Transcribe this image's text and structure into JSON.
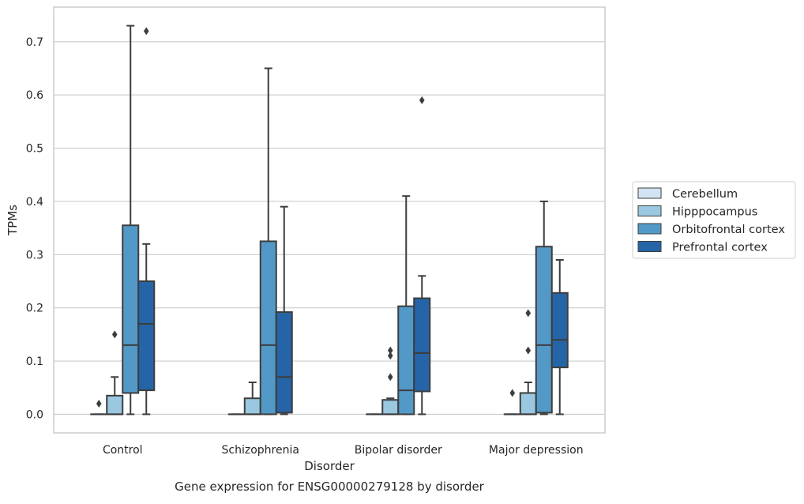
{
  "chart_data": {
    "type": "box",
    "xlabel": "Disorder",
    "ylabel": "TPMs",
    "caption": "Gene expression for ENSG00000279128 by disorder",
    "categories": [
      "Control",
      "Schizophrenia",
      "Bipolar disorder",
      "Major depression"
    ],
    "ylim": [
      -0.035,
      0.765
    ],
    "yticks": [
      "0.0",
      "0.1",
      "0.2",
      "0.3",
      "0.4",
      "0.5",
      "0.6",
      "0.7"
    ],
    "grid": "horizontal",
    "legend_position": "right",
    "series": [
      {
        "name": "Cerebellum",
        "color": "#d2e3f3",
        "boxes": [
          {
            "q1": 0,
            "median": 0,
            "q3": 0,
            "whisker_low": 0,
            "whisker_high": 0,
            "outliers": [
              0.02
            ]
          },
          {
            "q1": 0,
            "median": 0,
            "q3": 0,
            "whisker_low": 0,
            "whisker_high": 0,
            "outliers": []
          },
          {
            "q1": 0,
            "median": 0,
            "q3": 0,
            "whisker_low": 0,
            "whisker_high": 0,
            "outliers": []
          },
          {
            "q1": 0,
            "median": 0,
            "q3": 0,
            "whisker_low": 0,
            "whisker_high": 0,
            "outliers": [
              0.04
            ]
          }
        ]
      },
      {
        "name": "Hipppocampus",
        "color": "#9ac8e0",
        "boxes": [
          {
            "q1": 0,
            "median": 0,
            "q3": 0.035,
            "whisker_low": 0,
            "whisker_high": 0.07,
            "outliers": [
              0.15
            ]
          },
          {
            "q1": 0,
            "median": 0,
            "q3": 0.03,
            "whisker_low": 0,
            "whisker_high": 0.06,
            "outliers": []
          },
          {
            "q1": 0,
            "median": 0,
            "q3": 0.027,
            "whisker_low": 0,
            "whisker_high": 0.03,
            "outliers": [
              0.07,
              0.11,
              0.12
            ]
          },
          {
            "q1": 0,
            "median": 0,
            "q3": 0.04,
            "whisker_low": 0,
            "whisker_high": 0.06,
            "outliers": [
              0.12,
              0.19
            ]
          }
        ]
      },
      {
        "name": "Orbitofrontal cortex",
        "color": "#5399c7",
        "boxes": [
          {
            "q1": 0.04,
            "median": 0.13,
            "q3": 0.355,
            "whisker_low": 0,
            "whisker_high": 0.73,
            "outliers": []
          },
          {
            "q1": 0,
            "median": 0.13,
            "q3": 0.325,
            "whisker_low": 0,
            "whisker_high": 0.65,
            "outliers": []
          },
          {
            "q1": 0,
            "median": 0.045,
            "q3": 0.203,
            "whisker_low": 0,
            "whisker_high": 0.41,
            "outliers": []
          },
          {
            "q1": 0.003,
            "median": 0.13,
            "q3": 0.315,
            "whisker_low": 0,
            "whisker_high": 0.4,
            "outliers": []
          }
        ]
      },
      {
        "name": "Prefrontal cortex",
        "color": "#2565a7",
        "boxes": [
          {
            "q1": 0.045,
            "median": 0.17,
            "q3": 0.25,
            "whisker_low": 0,
            "whisker_high": 0.32,
            "outliers": [
              0.72
            ]
          },
          {
            "q1": 0.003,
            "median": 0.07,
            "q3": 0.192,
            "whisker_low": 0,
            "whisker_high": 0.39,
            "outliers": []
          },
          {
            "q1": 0.043,
            "median": 0.115,
            "q3": 0.218,
            "whisker_low": 0,
            "whisker_high": 0.26,
            "outliers": [
              0.59
            ]
          },
          {
            "q1": 0.088,
            "median": 0.14,
            "q3": 0.228,
            "whisker_low": 0,
            "whisker_high": 0.29,
            "outliers": []
          }
        ]
      }
    ]
  }
}
